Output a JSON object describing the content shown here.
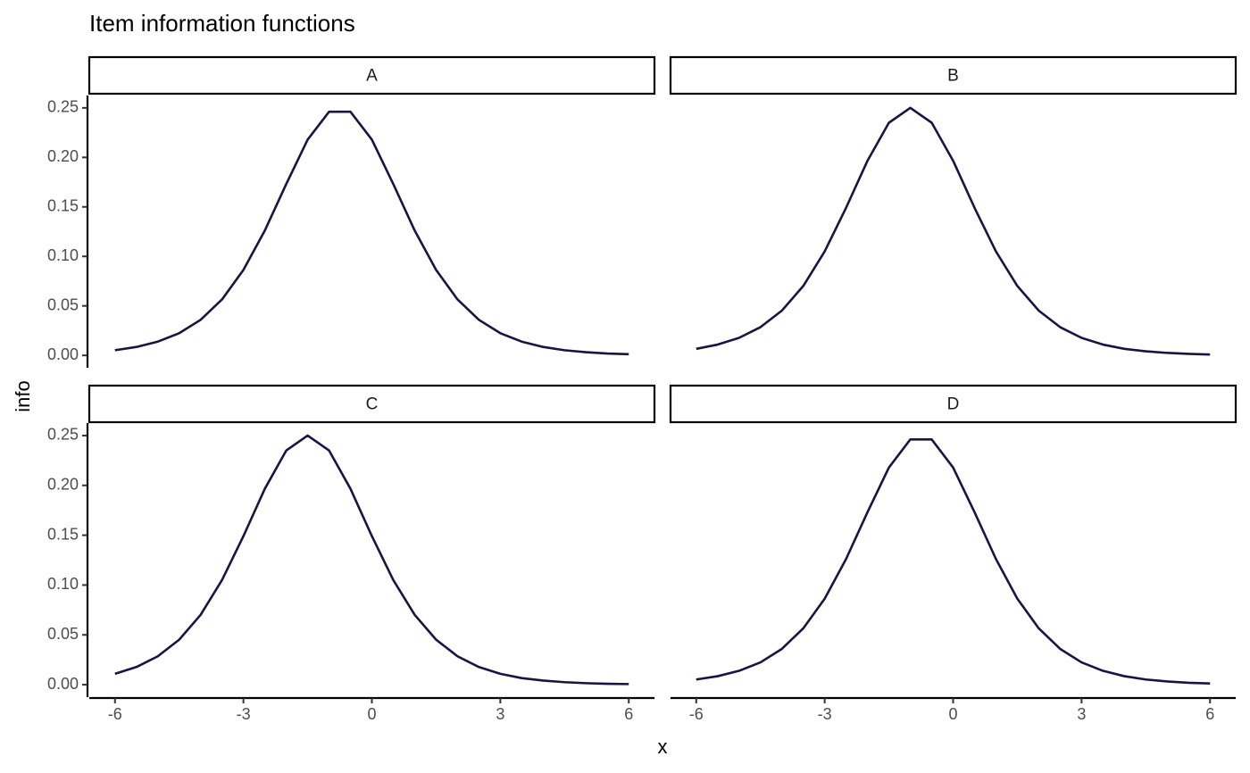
{
  "title": "Item information functions",
  "x_label": "x",
  "y_label": "info",
  "chart_data": [
    {
      "type": "line",
      "title": "A",
      "color": "#1b1443",
      "x": [
        -6,
        -5.5,
        -5,
        -4.5,
        -4,
        -3.5,
        -3,
        -2.5,
        -2,
        -1.5,
        -1,
        -0.5,
        0,
        0.5,
        1,
        1.5,
        2,
        2.5,
        3,
        3.5,
        4,
        4.5,
        5,
        5.5,
        6
      ],
      "values": [
        0.0052,
        0.0085,
        0.0139,
        0.0224,
        0.0359,
        0.0565,
        0.0863,
        0.1261,
        0.1731,
        0.2179,
        0.2461,
        0.2461,
        0.2179,
        0.1731,
        0.1261,
        0.0863,
        0.0565,
        0.0359,
        0.0224,
        0.0139,
        0.0085,
        0.0052,
        0.0032,
        0.0019,
        0.0012
      ],
      "xlim": [
        -6.6,
        6.6
      ],
      "ylim": [
        -0.0125,
        0.2625
      ],
      "yticks": [
        {
          "value": 0,
          "label": "0.00"
        },
        0.05,
        {
          "value": 0.1,
          "label": "0.10"
        },
        0.15,
        {
          "value": 0.2,
          "label": "0.20"
        },
        0.25
      ]
    },
    {
      "type": "line",
      "title": "B",
      "color": "#1b1443",
      "x": [
        -6,
        -5.5,
        -5,
        -4.5,
        -4,
        -3.5,
        -3,
        -2.5,
        -2,
        -1.5,
        -1,
        -0.5,
        0,
        0.5,
        1,
        1.5,
        2,
        2.5,
        3,
        3.5,
        4,
        4.5,
        5,
        5.5,
        6
      ],
      "values": [
        0.0066,
        0.0109,
        0.0177,
        0.0285,
        0.0452,
        0.0701,
        0.105,
        0.1491,
        0.1966,
        0.235,
        0.25,
        0.235,
        0.1966,
        0.1491,
        0.105,
        0.0701,
        0.0452,
        0.0285,
        0.0177,
        0.0109,
        0.0066,
        0.0041,
        0.0025,
        0.0015,
        0.0009
      ],
      "xlim": [
        -6.6,
        6.6
      ],
      "ylim": [
        -0.0125,
        0.2625
      ]
    },
    {
      "type": "line",
      "title": "C",
      "color": "#1b1443",
      "x": [
        -6,
        -5.5,
        -5,
        -4.5,
        -4,
        -3.5,
        -3,
        -2.5,
        -2,
        -1.5,
        -1,
        -0.5,
        0,
        0.5,
        1,
        1.5,
        2,
        2.5,
        3,
        3.5,
        4,
        4.5,
        5,
        5.5,
        6
      ],
      "values": [
        0.0109,
        0.0177,
        0.0285,
        0.0452,
        0.0701,
        0.105,
        0.1491,
        0.1966,
        0.235,
        0.25,
        0.235,
        0.1966,
        0.1491,
        0.105,
        0.0701,
        0.0452,
        0.0285,
        0.0177,
        0.0109,
        0.0066,
        0.0041,
        0.0025,
        0.0015,
        0.0009,
        0.0006
      ],
      "xlim": [
        -6.6,
        6.6
      ],
      "ylim": [
        -0.0125,
        0.2625
      ],
      "yticks": [
        {
          "value": 0,
          "label": "0.00"
        },
        0.05,
        {
          "value": 0.1,
          "label": "0.10"
        },
        0.15,
        {
          "value": 0.2,
          "label": "0.20"
        },
        0.25
      ],
      "xticks": [
        -6,
        -3,
        0,
        3,
        6
      ]
    },
    {
      "type": "line",
      "title": "D",
      "color": "#1b1443",
      "x": [
        -6,
        -5.5,
        -5,
        -4.5,
        -4,
        -3.5,
        -3,
        -2.5,
        -2,
        -1.5,
        -1,
        -0.5,
        0,
        0.5,
        1,
        1.5,
        2,
        2.5,
        3,
        3.5,
        4,
        4.5,
        5,
        5.5,
        6
      ],
      "values": [
        0.0052,
        0.0085,
        0.0139,
        0.0224,
        0.0359,
        0.0565,
        0.0863,
        0.1261,
        0.1731,
        0.2179,
        0.2461,
        0.2461,
        0.2179,
        0.1731,
        0.1261,
        0.0863,
        0.0565,
        0.0359,
        0.0224,
        0.0139,
        0.0085,
        0.0052,
        0.0032,
        0.0019,
        0.0012
      ],
      "xlim": [
        -6.6,
        6.6
      ],
      "ylim": [
        -0.0125,
        0.2625
      ],
      "xticks": [
        -6,
        -3,
        0,
        3,
        6
      ]
    }
  ]
}
